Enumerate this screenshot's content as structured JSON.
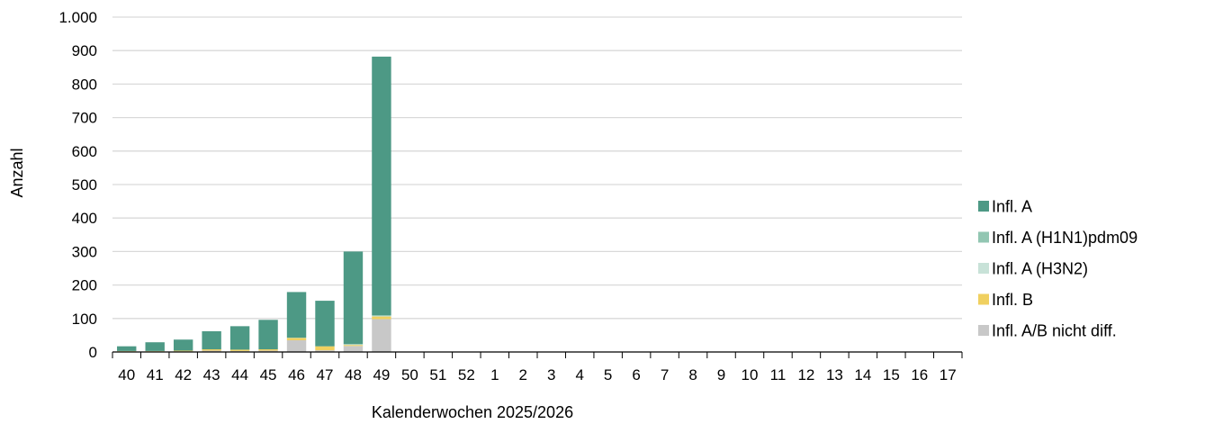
{
  "chart_data": {
    "type": "bar",
    "stacked": true,
    "title": "",
    "xlabel": "Kalenderwochen 2025/2026",
    "ylabel": "Anzahl",
    "ylim": [
      0,
      1000
    ],
    "yticks": [
      0,
      100,
      200,
      300,
      400,
      500,
      600,
      700,
      800,
      900,
      1000
    ],
    "ytick_labels": [
      "0",
      "100",
      "200",
      "300",
      "400",
      "500",
      "600",
      "700",
      "800",
      "900",
      "1.000"
    ],
    "grid": "horizontal",
    "legend_position": "right",
    "categories": [
      "40",
      "41",
      "42",
      "43",
      "44",
      "45",
      "46",
      "47",
      "48",
      "49",
      "50",
      "51",
      "52",
      "1",
      "2",
      "3",
      "4",
      "5",
      "6",
      "7",
      "8",
      "9",
      "10",
      "11",
      "12",
      "13",
      "14",
      "15",
      "16",
      "17"
    ],
    "series": [
      {
        "name": "Infl. A/B nicht diff.",
        "color": "#c8c8c8",
        "values": [
          2,
          2,
          2,
          4,
          3,
          4,
          35,
          5,
          18,
          98,
          0,
          0,
          0,
          0,
          0,
          0,
          0,
          0,
          0,
          0,
          0,
          0,
          0,
          0,
          0,
          0,
          0,
          0,
          0,
          0
        ]
      },
      {
        "name": "Infl. B",
        "color": "#f0d060",
        "values": [
          1,
          1,
          2,
          4,
          4,
          4,
          7,
          12,
          3,
          8,
          0,
          0,
          0,
          0,
          0,
          0,
          0,
          0,
          0,
          0,
          0,
          0,
          0,
          0,
          0,
          0,
          0,
          0,
          0,
          0
        ]
      },
      {
        "name": "Infl. A (H3N2)",
        "color": "#c8e2d8",
        "values": [
          0,
          0,
          0,
          0,
          0,
          0,
          0,
          0,
          1,
          1,
          0,
          0,
          0,
          0,
          0,
          0,
          0,
          0,
          0,
          0,
          0,
          0,
          0,
          0,
          0,
          0,
          0,
          0,
          0,
          0
        ]
      },
      {
        "name": "Infl. A (H1N1)pdm09",
        "color": "#92c6b2",
        "values": [
          0,
          0,
          0,
          0,
          0,
          0,
          1,
          0,
          2,
          3,
          0,
          0,
          0,
          0,
          0,
          0,
          0,
          0,
          0,
          0,
          0,
          0,
          0,
          0,
          0,
          0,
          0,
          0,
          0,
          0
        ]
      },
      {
        "name": "Infl. A",
        "color": "#4d9985",
        "values": [
          14,
          26,
          33,
          54,
          70,
          88,
          136,
          136,
          276,
          772,
          0,
          0,
          0,
          0,
          0,
          0,
          0,
          0,
          0,
          0,
          0,
          0,
          0,
          0,
          0,
          0,
          0,
          0,
          0,
          0
        ]
      }
    ],
    "legend_order": [
      "Infl. A",
      "Infl. A (H1N1)pdm09",
      "Infl. A (H3N2)",
      "Infl. B",
      "Infl. A/B nicht diff."
    ]
  }
}
